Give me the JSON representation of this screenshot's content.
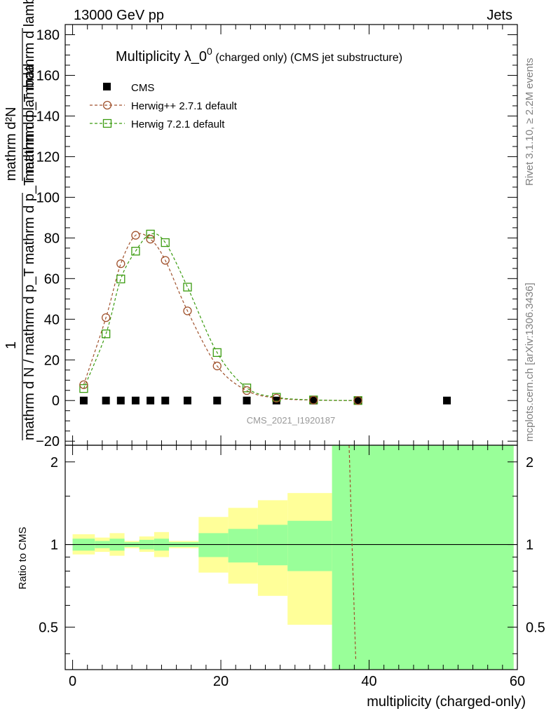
{
  "chart_data": {
    "type": "scatter",
    "header_left": "13000 GeV pp",
    "header_right": "Jets",
    "title_main": "Multiplicity λ_0",
    "title_sup": "0",
    "title_rest": " (charged only) (CMS jet substructure)",
    "ylabel_top_num": "mathrm d²N",
    "ylabel_top_den": "mathrm d p_T mathrm d lambda",
    "ylabel_bot_num": "1",
    "ylabel_bot_den": "mathrm d N / mathrm d p_T mathrm d p_T mathrm d lambda",
    "xlabel": "multiplicity (charged-only)",
    "ratio_ylabel": "Ratio to CMS",
    "watermark": "CMS_2021_I1920187",
    "side_right_top": "Rivet 3.1.10, ≥ 2.2M events",
    "side_right_bottom": "mcplots.cern.ch [arXiv:1306.3436]",
    "xlim": [
      -1,
      60
    ],
    "ylim": [
      -22,
      185
    ],
    "ratio_ylim": [
      0.35,
      2.3
    ],
    "xticks": [
      0,
      20,
      40,
      60
    ],
    "yticks": [
      -20,
      0,
      20,
      40,
      60,
      80,
      100,
      120,
      140,
      160,
      180
    ],
    "ratio_ticks": [
      0.5,
      1,
      2
    ],
    "legend": [
      "CMS",
      "Herwig++ 2.7.1 default",
      "Herwig 7.2.1 default"
    ],
    "legend_position": "top-left",
    "colors": {
      "cms": "#000000",
      "herwigpp": "#a0522d",
      "herwig7": "#3a9b0f",
      "band_inner": "#99ff99",
      "band_outer": "#ffff99"
    },
    "series": [
      {
        "name": "CMS",
        "x": [
          1.5,
          4.5,
          6.5,
          8.5,
          10.5,
          12.5,
          15.5,
          19.5,
          23.5,
          27.5,
          32.5,
          38.5,
          50.5
        ],
        "y": [
          0,
          0,
          0,
          0,
          0,
          0,
          0,
          0,
          0,
          0,
          0,
          0,
          0
        ]
      },
      {
        "name": "Herwig++ 2.7.1 default",
        "x": [
          1.5,
          4.5,
          6.5,
          8.5,
          10.5,
          12.5,
          15.5,
          19.5,
          23.5,
          27.5,
          32.5,
          38.5
        ],
        "y": [
          7.8,
          40.8,
          67.3,
          81.3,
          79.4,
          69.0,
          44.1,
          17.0,
          4.9,
          1.2,
          0.2,
          0.0
        ]
      },
      {
        "name": "Herwig 7.2.1 default",
        "x": [
          1.5,
          4.5,
          6.5,
          8.5,
          10.5,
          12.5,
          15.5,
          19.5,
          23.5,
          27.5,
          32.5,
          38.5
        ],
        "y": [
          5.9,
          32.8,
          59.8,
          73.5,
          81.9,
          77.7,
          55.8,
          23.6,
          6.2,
          1.6,
          0.3,
          0.0
        ]
      }
    ],
    "ratio_herwigpp": {
      "x": [
        37.3,
        37.7,
        38.2
      ],
      "y": [
        2.3,
        1.0,
        0.38
      ]
    },
    "ratio_bands": [
      {
        "x0": 0,
        "x1": 3,
        "in_lo": 0.95,
        "in_hi": 1.05,
        "out_lo": 0.92,
        "out_hi": 1.09
      },
      {
        "x0": 3,
        "x1": 5,
        "in_lo": 0.97,
        "in_hi": 1.03,
        "out_lo": 0.94,
        "out_hi": 1.06
      },
      {
        "x0": 5,
        "x1": 7,
        "in_lo": 0.95,
        "in_hi": 1.05,
        "out_lo": 0.91,
        "out_hi": 1.1
      },
      {
        "x0": 7,
        "x1": 9,
        "in_lo": 0.98,
        "in_hi": 1.02,
        "out_lo": 0.97,
        "out_hi": 1.03
      },
      {
        "x0": 9,
        "x1": 11,
        "in_lo": 0.96,
        "in_hi": 1.04,
        "out_lo": 0.94,
        "out_hi": 1.07
      },
      {
        "x0": 11,
        "x1": 13,
        "in_lo": 0.95,
        "in_hi": 1.05,
        "out_lo": 0.9,
        "out_hi": 1.11
      },
      {
        "x0": 13,
        "x1": 17,
        "in_lo": 0.98,
        "in_hi": 1.02,
        "out_lo": 0.97,
        "out_hi": 1.03
      },
      {
        "x0": 17,
        "x1": 21,
        "in_lo": 0.9,
        "in_hi": 1.1,
        "out_lo": 0.79,
        "out_hi": 1.26
      },
      {
        "x0": 21,
        "x1": 25,
        "in_lo": 0.86,
        "in_hi": 1.14,
        "out_lo": 0.72,
        "out_hi": 1.36
      },
      {
        "x0": 25,
        "x1": 29,
        "in_lo": 0.84,
        "in_hi": 1.18,
        "out_lo": 0.65,
        "out_hi": 1.45
      },
      {
        "x0": 29,
        "x1": 35,
        "in_lo": 0.8,
        "in_hi": 1.22,
        "out_lo": 0.51,
        "out_hi": 1.54
      },
      {
        "x0": 35,
        "x1": 59.5,
        "in_lo": 0.35,
        "in_hi": 2.3,
        "out_lo": 0.35,
        "out_hi": 2.3
      }
    ]
  }
}
